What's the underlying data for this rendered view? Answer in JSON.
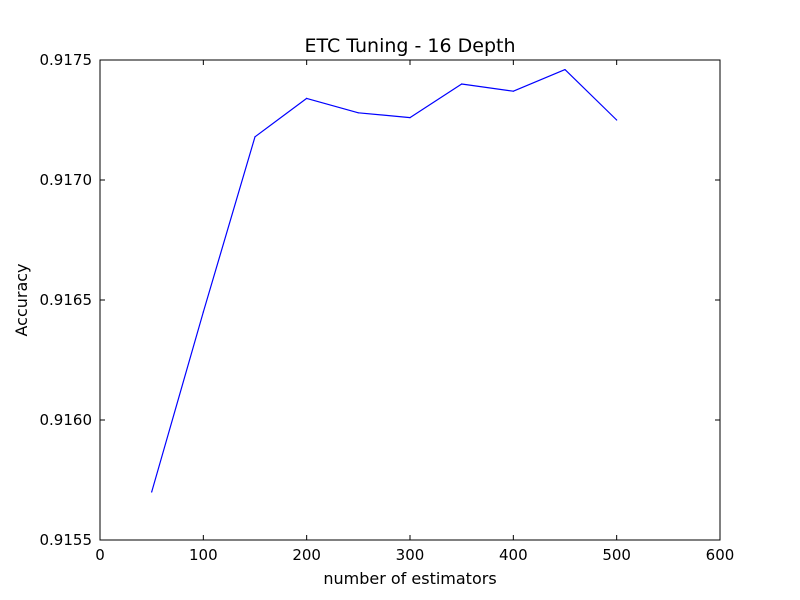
{
  "chart_data": {
    "type": "line",
    "title": "ETC Tuning - 16 Depth",
    "xlabel": "number of estimators",
    "ylabel": "Accuracy",
    "xlim": [
      0,
      600
    ],
    "ylim": [
      0.9155,
      0.9175
    ],
    "xticks": [
      0,
      100,
      200,
      300,
      400,
      500,
      600
    ],
    "yticks": [
      "0.9155",
      "0.9160",
      "0.9165",
      "0.9170",
      "0.9175"
    ],
    "grid": false,
    "series": [
      {
        "color": "#0000ff",
        "x": [
          50,
          100,
          150,
          200,
          250,
          300,
          350,
          400,
          450,
          500
        ],
        "y": [
          0.9157,
          0.91645,
          0.91718,
          0.91734,
          0.91728,
          0.91726,
          0.9174,
          0.91737,
          0.91746,
          0.91725
        ]
      }
    ]
  }
}
